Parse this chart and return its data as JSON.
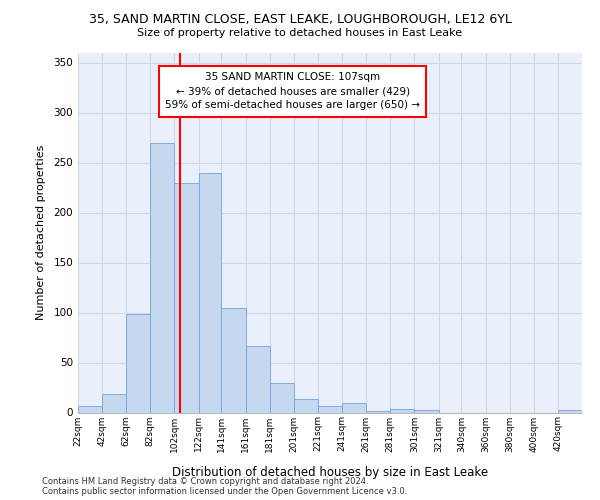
{
  "title_line1": "35, SAND MARTIN CLOSE, EAST LEAKE, LOUGHBOROUGH, LE12 6YL",
  "title_line2": "Size of property relative to detached houses in East Leake",
  "xlabel": "Distribution of detached houses by size in East Leake",
  "ylabel": "Number of detached properties",
  "bin_edges": [
    22,
    42,
    62,
    82,
    102,
    122,
    141,
    161,
    181,
    201,
    221,
    241,
    261,
    281,
    301,
    321,
    340,
    360,
    380,
    400,
    420
  ],
  "bin_labels": [
    "22sqm",
    "42sqm",
    "62sqm",
    "82sqm",
    "102sqm",
    "122sqm",
    "141sqm",
    "161sqm",
    "181sqm",
    "201sqm",
    "221sqm",
    "241sqm",
    "261sqm",
    "281sqm",
    "301sqm",
    "321sqm",
    "340sqm",
    "360sqm",
    "380sqm",
    "400sqm",
    "420sqm"
  ],
  "bar_heights": [
    7,
    19,
    99,
    270,
    230,
    240,
    105,
    67,
    30,
    14,
    7,
    10,
    2,
    4,
    3,
    0,
    0,
    0,
    0,
    0,
    3
  ],
  "bar_color": "#c5d8f0",
  "bar_edge_color": "#6fa8d6",
  "property_size": 107,
  "annotation_text": "35 SAND MARTIN CLOSE: 107sqm\n← 39% of detached houses are smaller (429)\n59% of semi-detached houses are larger (650) →",
  "annotation_box_color": "white",
  "annotation_box_edge_color": "red",
  "vline_color": "red",
  "ylim": [
    0,
    360
  ],
  "yticks": [
    0,
    50,
    100,
    150,
    200,
    250,
    300,
    350
  ],
  "grid_color": "#d0d8e8",
  "background_color": "#eaf0fb",
  "footer_line1": "Contains HM Land Registry data © Crown copyright and database right 2024.",
  "footer_line2": "Contains public sector information licensed under the Open Government Licence v3.0."
}
